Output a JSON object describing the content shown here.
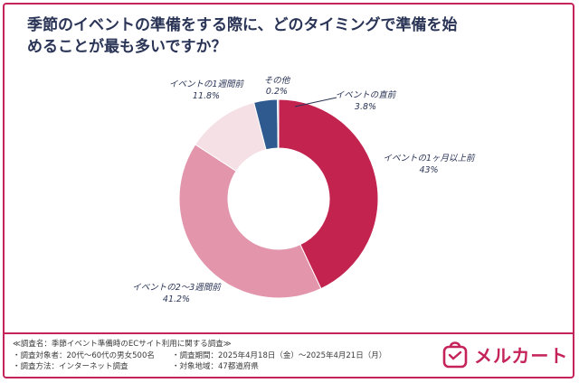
{
  "chart_data": {
    "type": "pie",
    "style": "donut",
    "title": "季節のイベントの準備をする際に、どのタイミングで準備を始めることが最も多いですか？",
    "title_lines": [
      "季節のイベントの準備をする際に、どのタイミングで準備を始",
      "めることが最も多いですか？"
    ],
    "start": "12 o'clock, clockwise",
    "slices": [
      {
        "label": "イベントの1ヶ月以上前",
        "value": 43,
        "value_text": "43%",
        "color": "#c3234f"
      },
      {
        "label": "イベントの2～3週間前",
        "value": 41.2,
        "value_text": "41.2%",
        "color": "#e295ab"
      },
      {
        "label": "イベントの1週間前",
        "value": 11.8,
        "value_text": "11.8%",
        "color": "#f4e0e5"
      },
      {
        "label": "イベントの直前",
        "value": 3.8,
        "value_text": "3.8%",
        "color": "#2e5a8f"
      },
      {
        "label": "その他",
        "value": 0.2,
        "value_text": "0.2%",
        "color": "#a8b4c8"
      }
    ]
  },
  "survey": {
    "name": "≪調査名：季節イベント準備時のECサイト利用に関する調査≫",
    "target": "・調査対象者：20代～60代の男女500名",
    "period": "・調査期間：2025年4月18日（金）～2025年4月21日（月）",
    "method": "・調査方法：インターネット調査",
    "region": "・対象地域：47都道府県"
  },
  "logo": {
    "text": "メルカート",
    "color": "#c5245a"
  }
}
